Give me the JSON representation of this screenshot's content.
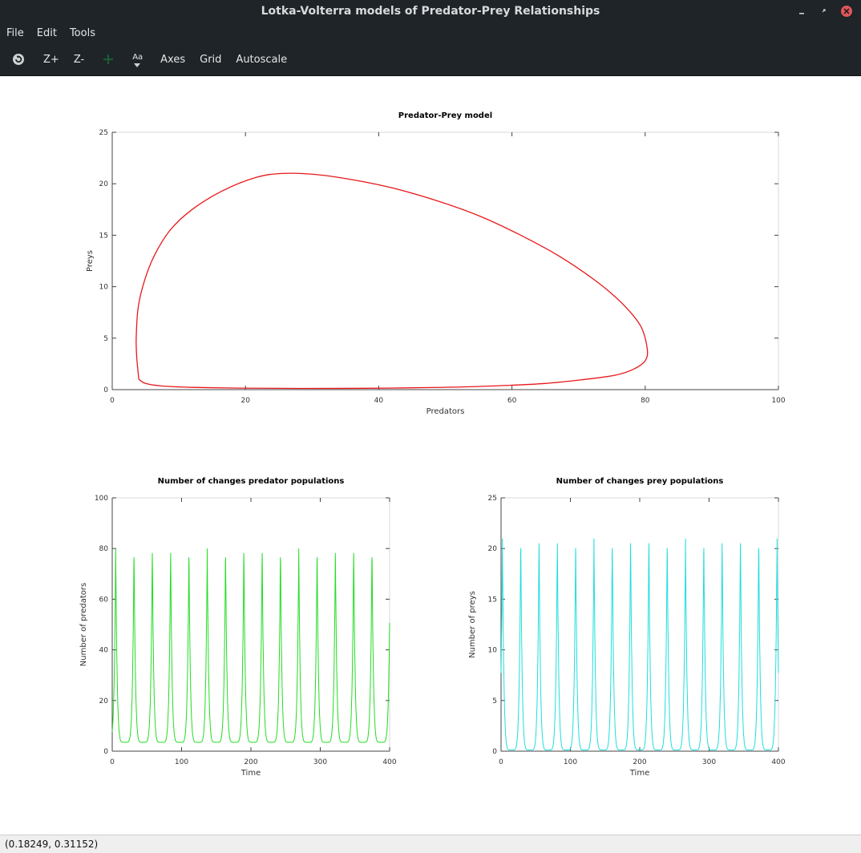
{
  "window": {
    "title": "Lotka-Volterra models of Predator-Prey Relationships",
    "minimize_icon": "minimize-icon",
    "maximize_icon": "maximize-icon",
    "close_icon": "close-icon",
    "close_color": "#e0575b"
  },
  "menu": {
    "items": [
      "File",
      "Edit",
      "Tools"
    ]
  },
  "toolbar": {
    "rotate_icon": "rotate-icon",
    "zoom_in_label": "Z+",
    "zoom_out_label": "Z-",
    "pan_icon": "pan-icon",
    "text_icon": "text-icon",
    "text_icon_glyph": "Aa",
    "axes_label": "Axes",
    "grid_label": "Grid",
    "autoscale_label": "Autoscale"
  },
  "status": {
    "coordinates": "(0.18249, 0.31152)"
  },
  "colors": {
    "chrome_bg": "#1e2428",
    "phase_line": "#e8171b",
    "predator_line": "#22dd22",
    "prey_line": "#22dddd"
  },
  "chart_data": [
    {
      "type": "line",
      "title": "Predator-Prey model",
      "xlabel": "Predators",
      "ylabel": "Preys",
      "xlim": [
        0,
        100
      ],
      "ylim": [
        0,
        25
      ],
      "xticks": [
        0,
        20,
        40,
        60,
        80,
        100
      ],
      "yticks": [
        0,
        5,
        10,
        15,
        20,
        25
      ],
      "grid": false,
      "series": [
        {
          "color": "#e8171b",
          "x": [
            4.0,
            3.7,
            3.6,
            3.9,
            4.8,
            6.3,
            8.7,
            12.0,
            16.5,
            21.5,
            25.5,
            30.5,
            36.0,
            42.0,
            48.5,
            55.0,
            61.0,
            67.0,
            72.5,
            76.5,
            79.3,
            80.3,
            80.0,
            78.3,
            75.5,
            71.0,
            65.0,
            57.0,
            48.0,
            38.0,
            28.0,
            19.0,
            12.0,
            7.5,
            5.0,
            4.0
          ],
          "y": [
            1.0,
            3.0,
            5.0,
            8.0,
            10.5,
            13.0,
            15.5,
            17.5,
            19.3,
            20.6,
            21.0,
            20.9,
            20.4,
            19.6,
            18.4,
            16.9,
            15.1,
            13.0,
            10.6,
            8.4,
            6.2,
            4.0,
            2.8,
            2.0,
            1.4,
            1.0,
            0.6,
            0.35,
            0.2,
            0.13,
            0.12,
            0.15,
            0.22,
            0.35,
            0.6,
            1.0
          ]
        }
      ]
    },
    {
      "type": "line",
      "title": "Number of changes predator populations",
      "xlabel": "Time",
      "ylabel": "Number of predators",
      "xlim": [
        0,
        400
      ],
      "ylim": [
        0,
        100
      ],
      "xticks": [
        0,
        100,
        200,
        300,
        400
      ],
      "yticks": [
        0,
        20,
        40,
        60,
        80,
        100
      ],
      "grid": false,
      "series": [
        {
          "color": "#22dd22",
          "period": 26.4,
          "max": 80,
          "min": 3.5,
          "peak_times": [
            5,
            31.4,
            57.8,
            84.2,
            110.6,
            137,
            163.4,
            189.8,
            216.2,
            242.6,
            269,
            295.4,
            321.8,
            348.2,
            374.6,
            401
          ]
        }
      ]
    },
    {
      "type": "line",
      "title": "Number of changes prey populations",
      "xlabel": "Time",
      "ylabel": "Number of preys",
      "xlim": [
        0,
        400
      ],
      "ylim": [
        0,
        25
      ],
      "xticks": [
        0,
        100,
        200,
        300,
        400
      ],
      "yticks": [
        0,
        5,
        10,
        15,
        20,
        25
      ],
      "grid": false,
      "series": [
        {
          "color": "#22dddd",
          "period": 26.4,
          "max": 21,
          "min": 0.12,
          "peak_times": [
            2,
            28.4,
            54.8,
            81.2,
            107.6,
            134,
            160.4,
            186.8,
            213.2,
            239.6,
            266,
            292.4,
            318.8,
            345.2,
            371.6,
            398
          ]
        }
      ]
    }
  ]
}
